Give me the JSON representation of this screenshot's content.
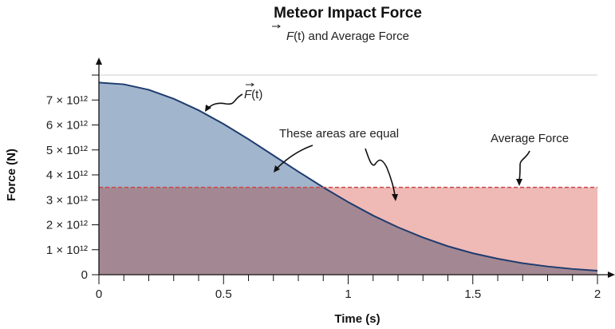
{
  "chart_data": {
    "type": "area",
    "title": "Meteor Impact Force",
    "subtitle_symbol": "F",
    "subtitle_rest": "(t) and Average Force",
    "xlabel": "Time (s)",
    "ylabel": "Force (N)",
    "xlim": [
      0,
      2
    ],
    "ylim": [
      0,
      8
    ],
    "y_unit_multiplier": "10^12",
    "x_ticks": [
      0,
      0.5,
      1,
      1.5,
      2
    ],
    "x_tick_labels": [
      "0",
      "0.5",
      "1",
      "1.5",
      "2"
    ],
    "x_minor_step": 0.1,
    "y_ticks": [
      0,
      1,
      2,
      3,
      4,
      5,
      6,
      7,
      8
    ],
    "y_tick_labels": [
      "0",
      "1 × 10¹²",
      "2 × 10¹²",
      "3 × 10¹²",
      "4 × 10¹²",
      "5 × 10¹²",
      "6 × 10¹²",
      "7 × 10¹²",
      ""
    ],
    "series": [
      {
        "name": "F(t)",
        "x": [
          0,
          0.1,
          0.2,
          0.3,
          0.4,
          0.5,
          0.6,
          0.7,
          0.8,
          0.9,
          1.0,
          1.1,
          1.2,
          1.3,
          1.4,
          1.5,
          1.6,
          1.7,
          1.8,
          1.9,
          2.0
        ],
        "y": [
          7.7,
          7.63,
          7.41,
          7.05,
          6.59,
          6.04,
          5.43,
          4.78,
          4.13,
          3.5,
          2.91,
          2.37,
          1.9,
          1.49,
          1.14,
          0.86,
          0.64,
          0.46,
          0.33,
          0.23,
          0.16
        ]
      }
    ],
    "average_force": 3.5,
    "annotations": {
      "curve_label_symbol": "F",
      "curve_label_rest": "(t)",
      "areas_equal": "These areas are equal",
      "average_label": "Average Force"
    },
    "colors": {
      "curve": "#1f3c6e",
      "area_above_average": "#a1b5cd",
      "area_overlap": "#a38893",
      "area_below_average": "#efb9b6",
      "average_line": "#c9484a"
    },
    "grid": false
  }
}
